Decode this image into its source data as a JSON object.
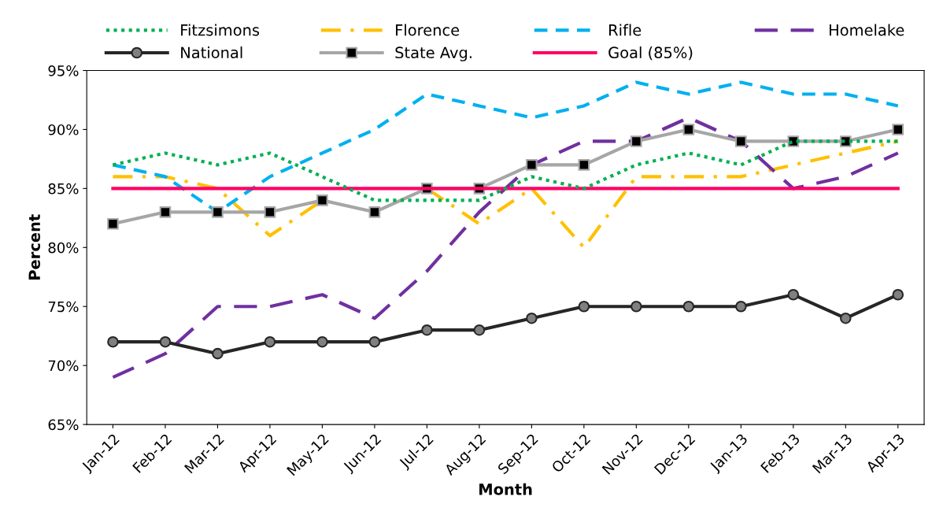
{
  "chart_data": {
    "type": "line",
    "xlabel": "Month",
    "ylabel": "Percent",
    "categories": [
      "Jan-12",
      "Feb-12",
      "Mar-12",
      "Apr-12",
      "May-12",
      "Jun-12",
      "Jul-12",
      "Aug-12",
      "Sep-12",
      "Oct-12",
      "Nov-12",
      "Dec-12",
      "Jan-13",
      "Feb-13",
      "Mar-13",
      "Apr-13"
    ],
    "series": [
      {
        "name": "Fitzsimons",
        "color": "#00b050",
        "line_style": "dotted",
        "marker": "none",
        "values": [
          87,
          88,
          87,
          88,
          86,
          84,
          84,
          84,
          86,
          85,
          87,
          88,
          87,
          89,
          89,
          89
        ]
      },
      {
        "name": "Florence",
        "color": "#ffc000",
        "line_style": "dashdot",
        "marker": "none",
        "values": [
          86,
          86,
          85,
          81,
          84,
          null,
          85,
          82,
          85,
          80,
          86,
          86,
          86,
          87,
          88,
          89
        ]
      },
      {
        "name": "Rifle",
        "color": "#00b0f0",
        "line_style": "dashed",
        "marker": "none",
        "values": [
          87,
          86,
          83,
          86,
          88,
          90,
          93,
          92,
          91,
          92,
          94,
          93,
          94,
          93,
          93,
          92
        ]
      },
      {
        "name": "Homelake",
        "color": "#7030a0",
        "line_style": "longdash",
        "marker": "none",
        "values": [
          69,
          71,
          75,
          75,
          76,
          74,
          78,
          83,
          87,
          89,
          89,
          91,
          89,
          85,
          86,
          88
        ]
      },
      {
        "name": "National",
        "color": "#262626",
        "line_style": "solid",
        "marker": "circle",
        "values": [
          72,
          72,
          71,
          72,
          72,
          72,
          73,
          73,
          74,
          75,
          75,
          75,
          75,
          76,
          74,
          76
        ]
      },
      {
        "name": "State Avg.",
        "color": "#a6a6a6",
        "line_style": "solid",
        "marker": "square",
        "values": [
          82,
          83,
          83,
          83,
          84,
          83,
          85,
          85,
          87,
          87,
          89,
          90,
          89,
          89,
          89,
          90
        ]
      },
      {
        "name": "Goal (85%)",
        "color": "#ff0066",
        "line_style": "solid",
        "marker": "none",
        "values": [
          85,
          85,
          85,
          85,
          85,
          85,
          85,
          85,
          85,
          85,
          85,
          85,
          85,
          85,
          85,
          85
        ]
      }
    ],
    "ylim": [
      65,
      95
    ],
    "yticks": [
      {
        "value": 65,
        "label": "65%"
      },
      {
        "value": 70,
        "label": "70%"
      },
      {
        "value": 75,
        "label": "75%"
      },
      {
        "value": 80,
        "label": "80%"
      },
      {
        "value": 85,
        "label": "85%"
      },
      {
        "value": 90,
        "label": "90%"
      },
      {
        "value": 95,
        "label": "95%"
      }
    ],
    "grid": false,
    "legend": "top"
  }
}
